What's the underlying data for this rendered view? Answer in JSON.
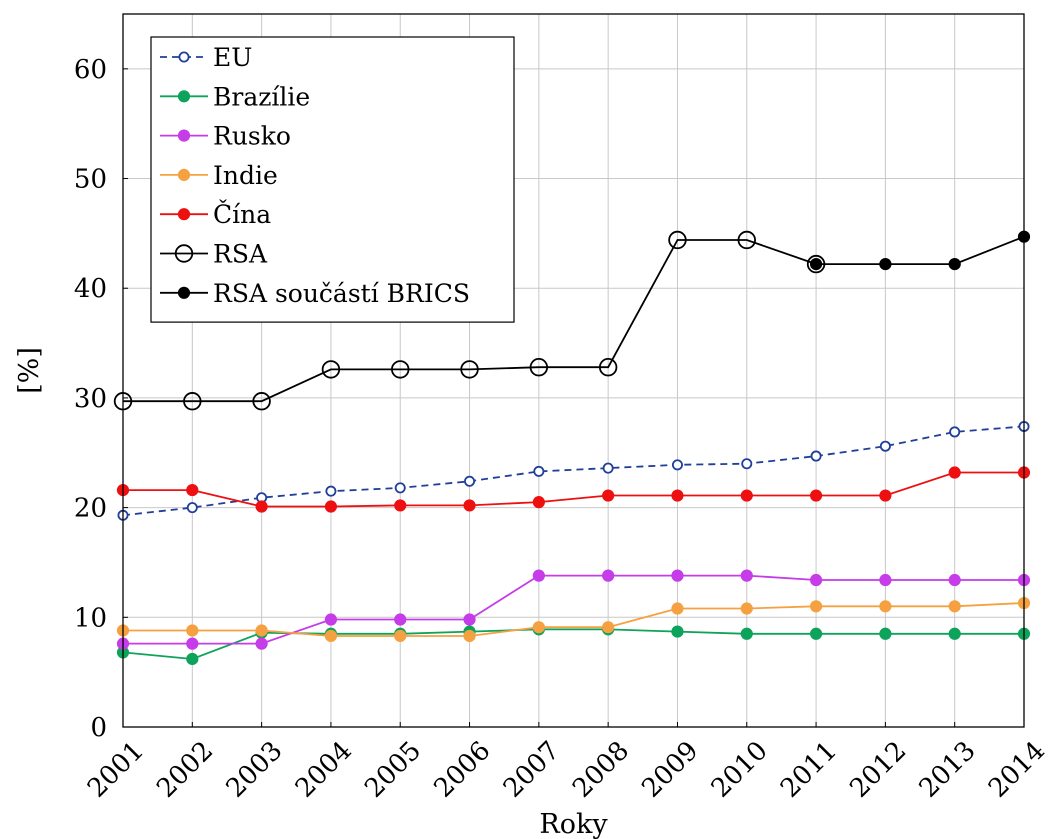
{
  "chart_data": {
    "type": "line",
    "xlabel": "Roky",
    "ylabel": "[%]",
    "x": [
      2001,
      2002,
      2003,
      2004,
      2005,
      2006,
      2007,
      2008,
      2009,
      2010,
      2011,
      2012,
      2013,
      2014
    ],
    "xtick_labels": [
      "2001",
      "2002",
      "2003",
      "2004",
      "2005",
      "2006",
      "2007",
      "2008",
      "2009",
      "2010",
      "2011",
      "2012",
      "2013",
      "2014"
    ],
    "yticks": [
      0,
      10,
      20,
      30,
      40,
      50,
      60
    ],
    "ytick_labels": [
      "0",
      "10",
      "20",
      "30",
      "40",
      "50",
      "60"
    ],
    "xlim": [
      2001,
      2014
    ],
    "ylim": [
      0,
      65
    ],
    "grid": true,
    "legend_position": "top-left",
    "series": [
      {
        "name": "EU",
        "color": "#1f3f99",
        "dashed": true,
        "marker": "open-circle-small",
        "values": [
          19.3,
          20.0,
          20.9,
          21.5,
          21.8,
          22.4,
          23.3,
          23.6,
          23.9,
          24.0,
          24.7,
          25.6,
          26.9,
          27.4
        ]
      },
      {
        "name": "Brazílie",
        "color": "#0da35a",
        "marker": "filled-circle",
        "values": [
          6.8,
          6.2,
          8.6,
          8.5,
          8.5,
          8.7,
          8.9,
          8.9,
          8.7,
          8.5,
          8.5,
          8.5,
          8.5,
          8.5
        ]
      },
      {
        "name": "Rusko",
        "color": "#c53ce8",
        "marker": "filled-circle",
        "values": [
          7.6,
          7.6,
          7.6,
          9.8,
          9.8,
          9.8,
          13.8,
          13.8,
          13.8,
          13.8,
          13.4,
          13.4,
          13.4,
          13.4
        ]
      },
      {
        "name": "Indie",
        "color": "#f6a141",
        "marker": "filled-circle",
        "values": [
          8.8,
          8.8,
          8.8,
          8.3,
          8.3,
          8.3,
          9.1,
          9.1,
          10.8,
          10.8,
          11.0,
          11.0,
          11.0,
          11.3
        ]
      },
      {
        "name": "Čína",
        "color": "#ee1010",
        "marker": "filled-circle",
        "values": [
          21.6,
          21.6,
          20.1,
          20.1,
          20.2,
          20.2,
          20.5,
          21.1,
          21.1,
          21.1,
          21.1,
          21.1,
          23.2,
          23.2
        ]
      },
      {
        "name": "RSA",
        "color": "#000000",
        "marker": "open-circle",
        "values": [
          29.7,
          29.7,
          29.7,
          32.6,
          32.6,
          32.6,
          32.8,
          32.8,
          44.4,
          44.4,
          42.2,
          null,
          null,
          null
        ]
      },
      {
        "name": "RSA součástí BRICS",
        "color": "#000000",
        "marker": "filled-circle",
        "values": [
          null,
          null,
          null,
          null,
          null,
          null,
          null,
          null,
          null,
          null,
          42.2,
          42.2,
          42.2,
          44.7
        ]
      }
    ]
  }
}
